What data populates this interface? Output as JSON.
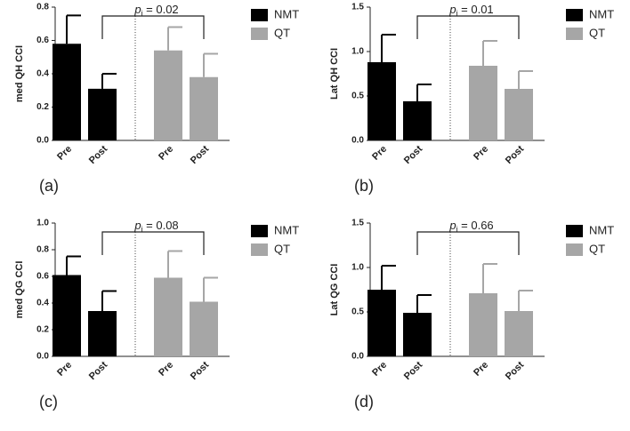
{
  "chart_data": [
    {
      "type": "bar",
      "panel_label": "(a)",
      "ylabel": "med QH CCI",
      "annotation": {
        "symbol": "p",
        "subscript": "i",
        "text": " = 0.02"
      },
      "categories": [
        "Pre",
        "Post",
        "Pre",
        "Post"
      ],
      "series": [
        {
          "name": "NMT",
          "color": "#000000",
          "values": [
            0.58,
            0.31,
            null,
            null
          ],
          "errors": [
            0.17,
            0.09,
            null,
            null
          ]
        },
        {
          "name": "QT",
          "color": "#a6a6a6",
          "values": [
            null,
            null,
            0.54,
            0.38
          ],
          "errors": [
            null,
            null,
            0.14,
            0.14
          ]
        }
      ],
      "ylim": [
        0,
        0.8
      ],
      "yticks": [
        {
          "value": 0,
          "label": "0.0"
        },
        0.2,
        0.4,
        0.6,
        0.8
      ],
      "legend": "right"
    },
    {
      "type": "bar",
      "panel_label": "(b)",
      "ylabel": "Lat QH CCI",
      "annotation": {
        "symbol": "p",
        "subscript": "i",
        "text": " = 0.01"
      },
      "categories": [
        "Pre",
        "Post",
        "Pre",
        "Post"
      ],
      "series": [
        {
          "name": "NMT",
          "color": "#000000",
          "values": [
            0.88,
            0.44,
            null,
            null
          ],
          "errors": [
            0.31,
            0.19,
            null,
            null
          ]
        },
        {
          "name": "QT",
          "color": "#a6a6a6",
          "values": [
            null,
            null,
            0.84,
            0.58
          ],
          "errors": [
            null,
            null,
            0.28,
            0.2
          ]
        }
      ],
      "ylim": [
        0,
        1.5
      ],
      "yticks": [
        {
          "value": 0,
          "label": "0.0"
        },
        0.5,
        {
          "value": 1,
          "label": "1.0"
        },
        1.5
      ],
      "legend": "right"
    },
    {
      "type": "bar",
      "panel_label": "(c)",
      "ylabel": "med QG CCI",
      "annotation": {
        "symbol": "p",
        "subscript": "i",
        "text": " = 0.08"
      },
      "categories": [
        "Pre",
        "Post",
        "Pre",
        "Post"
      ],
      "series": [
        {
          "name": "NMT",
          "color": "#000000",
          "values": [
            0.61,
            0.34,
            null,
            null
          ],
          "errors": [
            0.14,
            0.15,
            null,
            null
          ]
        },
        {
          "name": "QT",
          "color": "#a6a6a6",
          "values": [
            null,
            null,
            0.59,
            0.41
          ],
          "errors": [
            null,
            null,
            0.2,
            0.18
          ]
        }
      ],
      "ylim": [
        0,
        1
      ],
      "yticks": [
        {
          "value": 0,
          "label": "0.0"
        },
        0.2,
        0.4,
        0.6,
        0.8,
        {
          "value": 1,
          "label": "1.0"
        }
      ],
      "legend": "right"
    },
    {
      "type": "bar",
      "panel_label": "(d)",
      "ylabel": "Lat QG CCI",
      "annotation": {
        "symbol": "p",
        "subscript": "i",
        "text": " = 0.66"
      },
      "categories": [
        "Pre",
        "Post",
        "Pre",
        "Post"
      ],
      "series": [
        {
          "name": "NMT",
          "color": "#000000",
          "values": [
            0.75,
            0.49,
            null,
            null
          ],
          "errors": [
            0.27,
            0.2,
            null,
            null
          ]
        },
        {
          "name": "QT",
          "color": "#a6a6a6",
          "values": [
            null,
            null,
            0.71,
            0.51
          ],
          "errors": [
            null,
            null,
            0.33,
            0.23
          ]
        }
      ],
      "ylim": [
        0,
        1.5
      ],
      "yticks": [
        {
          "value": 0,
          "label": "0.0"
        },
        0.5,
        {
          "value": 1,
          "label": "1.0"
        },
        1.5
      ],
      "legend": "right"
    }
  ]
}
